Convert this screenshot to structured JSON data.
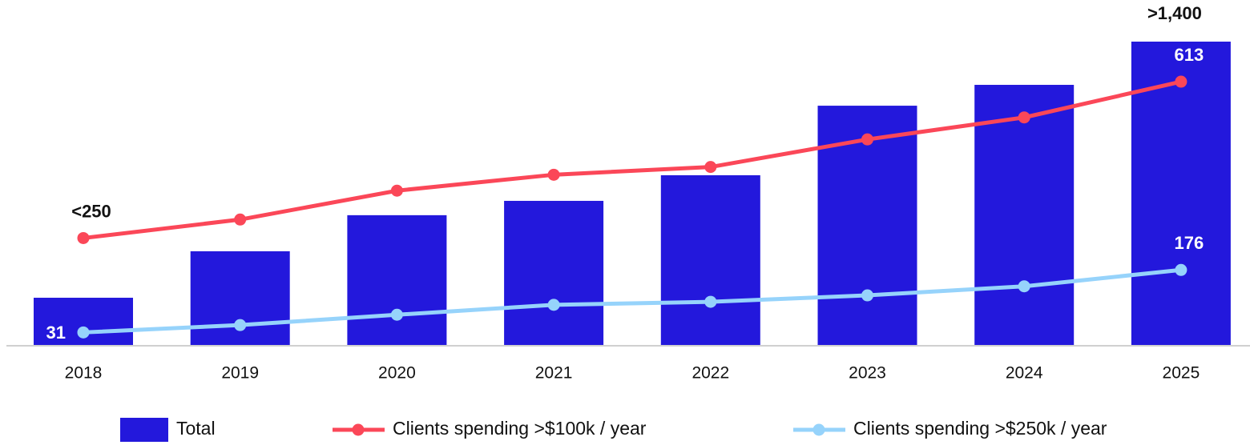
{
  "chart_data": {
    "type": "bar",
    "categories": [
      "2018",
      "2019",
      "2020",
      "2021",
      "2022",
      "2023",
      "2024",
      "2025"
    ],
    "ylim": [
      0,
      1400
    ],
    "y2lim": [
      0,
      706
    ],
    "series": [
      {
        "name": "Total",
        "type": "bar",
        "color": "#2318dc",
        "values": [
          221,
          435,
          601,
          667,
          785,
          1105,
          1201,
          1400
        ],
        "value_labels": [
          null,
          null,
          null,
          null,
          null,
          null,
          null,
          ">1,400"
        ]
      },
      {
        "name": "Clients spending >$100k / year",
        "type": "line",
        "axis": "y2",
        "color": "#fb4758",
        "values": [
          250,
          293,
          360,
          397,
          415,
          479,
          530,
          613
        ],
        "value_labels": [
          "<250",
          null,
          null,
          null,
          null,
          null,
          null,
          "613"
        ]
      },
      {
        "name": "Clients spending >$250k / year",
        "type": "line",
        "axis": "y2",
        "color": "#96d3fb",
        "values": [
          31,
          48,
          72,
          95,
          102,
          117,
          138,
          176
        ],
        "value_labels": [
          "31",
          null,
          null,
          null,
          null,
          null,
          null,
          "176"
        ]
      }
    ]
  }
}
